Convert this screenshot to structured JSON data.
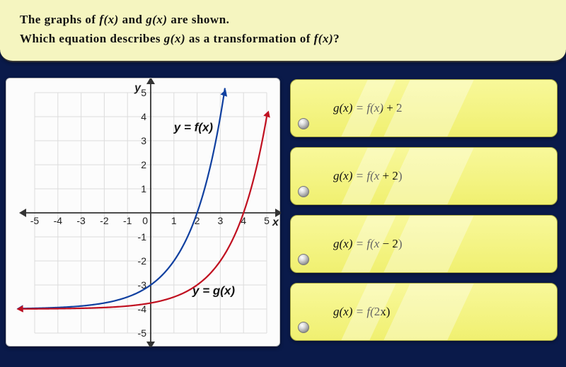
{
  "header": {
    "line1_a": "The graphs of ",
    "line1_f": "f(x)",
    "line1_b": " and ",
    "line1_g": "g(x)",
    "line1_c": " are shown.",
    "line2_a": "Which equation describes ",
    "line2_g": "g(x)",
    "line2_b": " as a transformation of ",
    "line2_f": "f(x)",
    "line2_c": "?"
  },
  "graph": {
    "xlim": [
      -5,
      5
    ],
    "ylim": [
      -5,
      5
    ],
    "xticks": [
      -5,
      -4,
      -3,
      -2,
      -1,
      0,
      1,
      2,
      3,
      4,
      5
    ],
    "yticks": [
      -5,
      -4,
      -3,
      -2,
      -1,
      1,
      2,
      3,
      4,
      5
    ],
    "x_axis_label": "x",
    "y_axis_label": "y",
    "f_label": "y = f(x)",
    "g_label": "y = g(x)",
    "f_color": "#1040a0",
    "g_color": "#c01020",
    "background_color": "#fcfcfc",
    "grid_color": "#dcdcdc",
    "axis_color": "#333333",
    "f_curve_type": "exponential",
    "f_asymptote": -4,
    "g_curve_type": "exponential",
    "g_asymptote": -4,
    "g_shift": "right 2"
  },
  "answers": {
    "a": {
      "prefix": "g(x) = f(x)",
      "suffix": " + 2"
    },
    "b": {
      "prefix": "g(x) = f(x",
      "suffix": " + 2)"
    },
    "c": {
      "prefix": "g(x) = f(x",
      "suffix": " − 2)"
    },
    "d": {
      "prefix": "g(x) = f(",
      "mid": "2x",
      "suffix": ")"
    }
  },
  "colors": {
    "header_bg": "#f5f5c0",
    "body_bg": "#0a1a4a",
    "answer_bg": "#f4f480"
  }
}
